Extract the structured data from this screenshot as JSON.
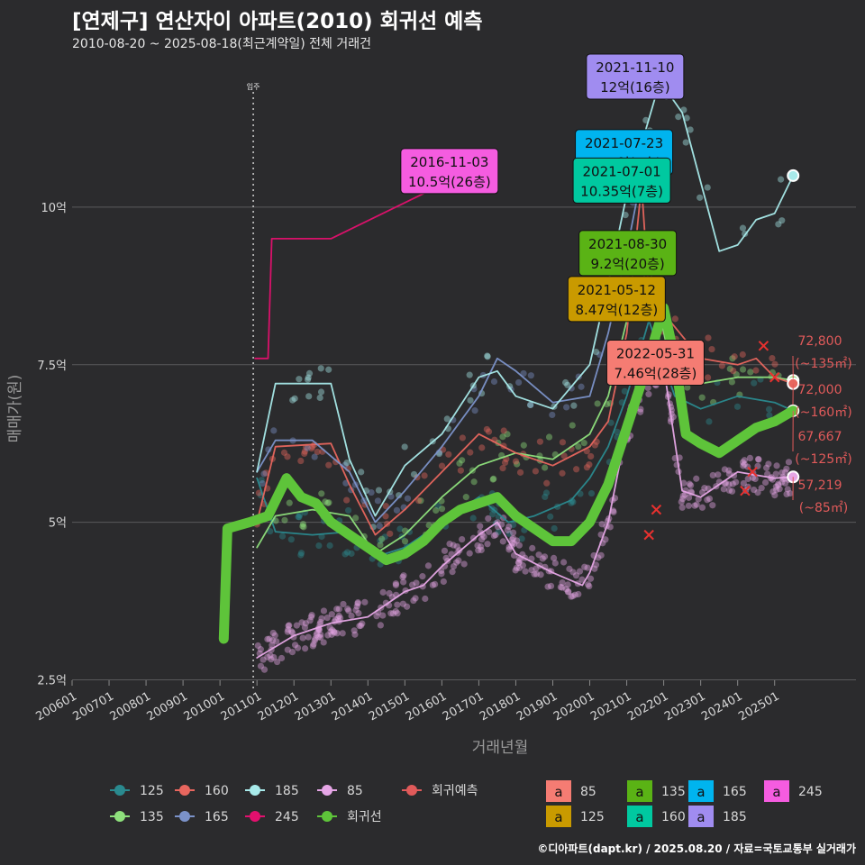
{
  "title": "[연제구] 연산자이 아파트(2010) 회귀선 예측",
  "subtitle": "2010-08-20 ~ 2025-08-18(최근계약일) 전체 거래건",
  "footer": "©디아파트(dapt.kr) / 2025.08.20 / 자료=국토교통부 실거래가",
  "chart_data": {
    "type": "line",
    "title": "[연제구] 연산자이 아파트(2010) 회귀선 예측",
    "subtitle": "2010-08-20 ~ 2025-08-18(최근계약일) 전체 거래건",
    "xlabel": "거래년월",
    "ylabel": "매매가(원)",
    "xlim": [
      2006.0,
      2027.2
    ],
    "ylim": [
      2.35,
      12.4
    ],
    "x_ticks": [
      "200601",
      "200701",
      "200801",
      "200901",
      "201001",
      "201101",
      "201201",
      "201301",
      "201401",
      "201501",
      "201601",
      "201701",
      "201801",
      "201901",
      "202001",
      "202101",
      "202201",
      "202301",
      "202401",
      "202501"
    ],
    "y_ticks": [
      {
        "value": 2.5,
        "label": "2.5억"
      },
      {
        "value": 5,
        "label": "5억"
      },
      {
        "value": 7.5,
        "label": "7.5억"
      },
      {
        "value": 10,
        "label": "10억"
      }
    ],
    "vline": {
      "x": 2010.9,
      "label": "입주"
    },
    "grid": true,
    "legend_position": "bottom",
    "series": [
      {
        "name": "125",
        "color": "#2a8a8f",
        "points": [
          [
            2011.0,
            5.7
          ],
          [
            2011.5,
            4.85
          ],
          [
            2012.5,
            4.8
          ],
          [
            2013.5,
            4.85
          ],
          [
            2014.2,
            4.45
          ],
          [
            2015.0,
            4.6
          ],
          [
            2016.0,
            5.0
          ],
          [
            2017.0,
            5.4
          ],
          [
            2017.8,
            5.0
          ],
          [
            2018.5,
            5.1
          ],
          [
            2019.5,
            5.35
          ],
          [
            2020.0,
            5.7
          ],
          [
            2020.5,
            6.2
          ],
          [
            2021.0,
            7.0
          ],
          [
            2021.6,
            8.2
          ],
          [
            2022.3,
            7.0
          ],
          [
            2023.0,
            6.8
          ],
          [
            2024.0,
            7.0
          ],
          [
            2025.0,
            6.9
          ],
          [
            2025.5,
            6.77
          ]
        ]
      },
      {
        "name": "135",
        "color": "#8ee07c",
        "points": [
          [
            2011.0,
            4.6
          ],
          [
            2011.5,
            5.1
          ],
          [
            2012.5,
            5.2
          ],
          [
            2013.5,
            5.1
          ],
          [
            2014.2,
            4.5
          ],
          [
            2015.0,
            4.8
          ],
          [
            2016.0,
            5.4
          ],
          [
            2017.0,
            5.9
          ],
          [
            2018.0,
            6.1
          ],
          [
            2019.0,
            6.0
          ],
          [
            2020.0,
            6.4
          ],
          [
            2020.5,
            7.0
          ],
          [
            2021.0,
            8.2
          ],
          [
            2021.6,
            9.1
          ],
          [
            2022.3,
            7.2
          ],
          [
            2023.0,
            7.2
          ],
          [
            2024.0,
            7.3
          ],
          [
            2025.0,
            7.3
          ],
          [
            2025.5,
            7.25
          ]
        ]
      },
      {
        "name": "160",
        "color": "#e8665e",
        "points": [
          [
            2011.0,
            5.0
          ],
          [
            2011.5,
            6.2
          ],
          [
            2013.0,
            6.25
          ],
          [
            2013.5,
            5.6
          ],
          [
            2014.2,
            4.8
          ],
          [
            2015.0,
            5.2
          ],
          [
            2016.0,
            5.8
          ],
          [
            2017.0,
            6.4
          ],
          [
            2018.0,
            6.1
          ],
          [
            2019.0,
            5.9
          ],
          [
            2020.0,
            6.2
          ],
          [
            2020.5,
            6.6
          ],
          [
            2021.0,
            8.0
          ],
          [
            2021.4,
            10.35
          ],
          [
            2021.6,
            8.6
          ],
          [
            2023.0,
            7.6
          ],
          [
            2024.0,
            7.5
          ],
          [
            2024.5,
            7.6
          ],
          [
            2025.0,
            7.3
          ],
          [
            2025.5,
            7.2
          ]
        ]
      },
      {
        "name": "165",
        "color": "#7b92c9",
        "points": [
          [
            2011.0,
            5.8
          ],
          [
            2011.5,
            6.3
          ],
          [
            2012.5,
            6.3
          ],
          [
            2013.5,
            5.8
          ],
          [
            2014.2,
            5.0
          ],
          [
            2015.0,
            5.5
          ],
          [
            2016.0,
            6.2
          ],
          [
            2017.0,
            7.0
          ],
          [
            2017.5,
            7.6
          ],
          [
            2018.0,
            7.4
          ],
          [
            2019.0,
            6.9
          ],
          [
            2020.0,
            7.0
          ],
          [
            2020.5,
            8.0
          ],
          [
            2021.0,
            9.3
          ],
          [
            2021.5,
            10.8
          ]
        ]
      },
      {
        "name": "185",
        "color": "#a8eaea",
        "points": [
          [
            2011.0,
            5.8
          ],
          [
            2011.5,
            7.2
          ],
          [
            2013.0,
            7.2
          ],
          [
            2013.5,
            6.0
          ],
          [
            2014.2,
            5.1
          ],
          [
            2015.0,
            5.9
          ],
          [
            2016.0,
            6.4
          ],
          [
            2017.0,
            7.3
          ],
          [
            2017.5,
            7.4
          ],
          [
            2018.0,
            7.0
          ],
          [
            2019.0,
            6.8
          ],
          [
            2020.0,
            7.5
          ],
          [
            2020.5,
            8.8
          ],
          [
            2021.0,
            10.2
          ],
          [
            2021.9,
            12.0
          ],
          [
            2022.5,
            11.5
          ],
          [
            2023.0,
            10.4
          ],
          [
            2023.5,
            9.3
          ],
          [
            2024.0,
            9.4
          ],
          [
            2024.5,
            9.8
          ],
          [
            2025.0,
            9.9
          ],
          [
            2025.5,
            10.5
          ]
        ]
      },
      {
        "name": "245",
        "color": "#e3106e",
        "points": [
          [
            2010.95,
            7.6
          ],
          [
            2011.3,
            7.6
          ],
          [
            2011.4,
            9.5
          ],
          [
            2012.0,
            9.5
          ],
          [
            2012.7,
            9.5
          ],
          [
            2013.0,
            9.5
          ],
          [
            2016.5,
            10.5
          ],
          [
            2016.9,
            10.5
          ]
        ]
      },
      {
        "name": "85",
        "color": "#e6a6e6",
        "points": [
          [
            2011.0,
            2.85
          ],
          [
            2012.0,
            3.2
          ],
          [
            2013.0,
            3.4
          ],
          [
            2014.0,
            3.5
          ],
          [
            2014.5,
            3.7
          ],
          [
            2015.0,
            3.9
          ],
          [
            2015.5,
            4.0
          ],
          [
            2016.0,
            4.3
          ],
          [
            2017.0,
            4.8
          ],
          [
            2017.5,
            5.0
          ],
          [
            2018.0,
            4.5
          ],
          [
            2019.0,
            4.2
          ],
          [
            2019.8,
            4.0
          ],
          [
            2020.0,
            4.2
          ],
          [
            2020.5,
            5.0
          ],
          [
            2021.0,
            6.5
          ],
          [
            2021.5,
            7.2
          ],
          [
            2022.0,
            7.46
          ],
          [
            2022.5,
            5.5
          ],
          [
            2023.0,
            5.4
          ],
          [
            2024.0,
            5.8
          ],
          [
            2025.0,
            5.7
          ],
          [
            2025.5,
            5.72
          ]
        ]
      },
      {
        "name": "회귀선",
        "color": "#5ec43a",
        "points": [
          [
            2010.1,
            3.15
          ],
          [
            2010.2,
            4.9
          ],
          [
            2010.8,
            5.0
          ],
          [
            2011.3,
            5.1
          ],
          [
            2011.8,
            5.7
          ],
          [
            2012.2,
            5.4
          ],
          [
            2012.6,
            5.3
          ],
          [
            2013.0,
            5.0
          ],
          [
            2013.5,
            4.8
          ],
          [
            2014.0,
            4.6
          ],
          [
            2014.5,
            4.4
          ],
          [
            2015.0,
            4.5
          ],
          [
            2015.5,
            4.7
          ],
          [
            2016.0,
            5.0
          ],
          [
            2016.5,
            5.2
          ],
          [
            2017.0,
            5.3
          ],
          [
            2017.5,
            5.4
          ],
          [
            2018.0,
            5.1
          ],
          [
            2018.5,
            4.9
          ],
          [
            2019.0,
            4.7
          ],
          [
            2019.5,
            4.7
          ],
          [
            2020.0,
            5.0
          ],
          [
            2020.5,
            5.6
          ],
          [
            2021.0,
            6.5
          ],
          [
            2021.5,
            7.4
          ],
          [
            2022.0,
            8.4
          ],
          [
            2022.3,
            7.6
          ],
          [
            2022.6,
            6.4
          ],
          [
            2023.0,
            6.25
          ],
          [
            2023.5,
            6.1
          ],
          [
            2024.0,
            6.3
          ],
          [
            2024.5,
            6.5
          ],
          [
            2025.0,
            6.6
          ],
          [
            2025.5,
            6.77
          ]
        ]
      },
      {
        "name": "회귀예측",
        "color": "#e05a5a",
        "points": [
          [
            2021.6,
            4.8
          ],
          [
            2021.8,
            5.2
          ],
          [
            2024.2,
            5.5
          ],
          [
            2024.4,
            5.8
          ],
          [
            2024.7,
            7.8
          ],
          [
            2025.0,
            7.3
          ]
        ]
      }
    ],
    "callouts": [
      {
        "date": "2021-11-10",
        "value": "12억(16층)",
        "color": "#a08cf0",
        "x": 2021.86,
        "y": 12.0
      },
      {
        "date": "2021-07-23",
        "value": "10.8억(6층)",
        "color": "#00b4ef",
        "x": 2021.56,
        "y": 10.8
      },
      {
        "date": "2016-11-03",
        "value": "10.5억(26층)",
        "color": "#f55ce0",
        "x": 2016.84,
        "y": 10.5
      },
      {
        "date": "2021-07-01",
        "value": "10.35억(7층)",
        "color": "#00c9a0",
        "x": 2021.5,
        "y": 10.35
      },
      {
        "date": "2021-08-30",
        "value": "9.2억(20층)",
        "color": "#5ab315",
        "x": 2021.66,
        "y": 9.2
      },
      {
        "date": "2021-05-12",
        "value": "8.47억(12층)",
        "color": "#c99a00",
        "x": 2021.36,
        "y": 8.47
      },
      {
        "date": "2022-05-31",
        "value": "7.46억(28층)",
        "color": "#f57c73",
        "x": 2022.41,
        "y": 7.46
      }
    ],
    "predictions": [
      {
        "value": "72,800",
        "area": "(~135㎡)",
        "y": 7.28
      },
      {
        "value": "72,000",
        "area": "(~160㎡)",
        "y": 7.2
      },
      {
        "value": "67,667",
        "area": "(~125㎡)",
        "y": 6.77
      },
      {
        "value": "57,219",
        "area": "(~85㎡)",
        "y": 5.72
      }
    ],
    "legend_lines": [
      {
        "name": "125",
        "color": "#2a8a8f"
      },
      {
        "name": "160",
        "color": "#e8665e"
      },
      {
        "name": "185",
        "color": "#a8eaea"
      },
      {
        "name": "85",
        "color": "#e6a6e6"
      },
      {
        "name": "회귀예측",
        "color": "#e05a5a"
      },
      {
        "name": "135",
        "color": "#8ee07c"
      },
      {
        "name": "165",
        "color": "#7b92c9"
      },
      {
        "name": "245",
        "color": "#e3106e"
      },
      {
        "name": "회귀선",
        "color": "#5ec43a"
      }
    ],
    "legend_boxes": [
      {
        "name": "85",
        "color": "#f57c73"
      },
      {
        "name": "135",
        "color": "#5ab315"
      },
      {
        "name": "165",
        "color": "#00b4ef"
      },
      {
        "name": "245",
        "color": "#f55ce0"
      },
      {
        "name": "125",
        "color": "#c99a00"
      },
      {
        "name": "160",
        "color": "#00c9a0"
      },
      {
        "name": "185",
        "color": "#a08cf0"
      }
    ],
    "legend_box_glyph": "a"
  }
}
